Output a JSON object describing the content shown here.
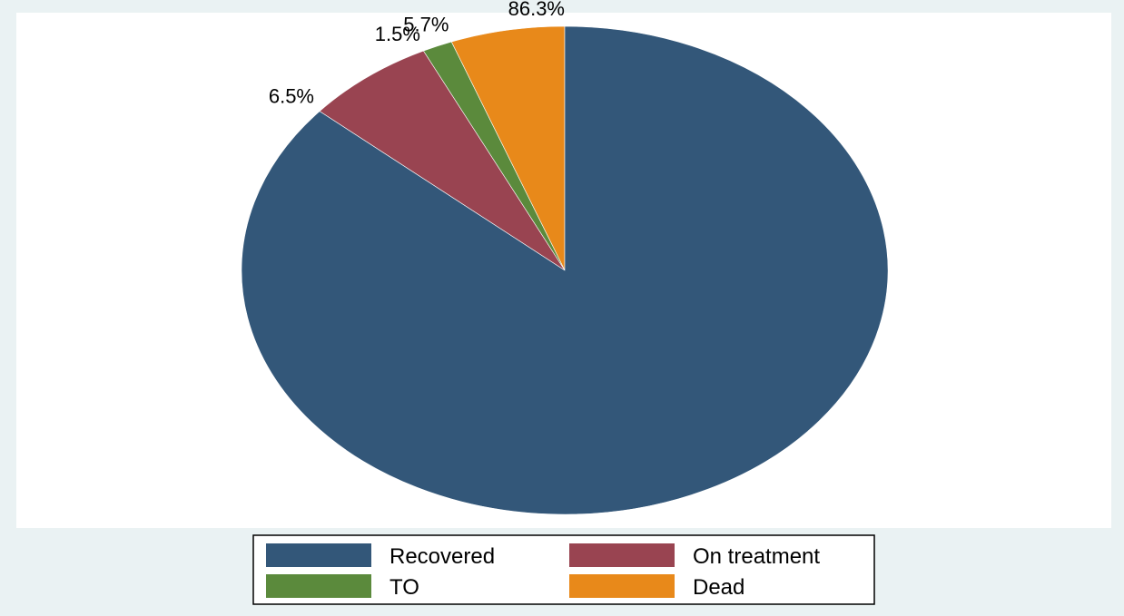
{
  "chart_data": {
    "type": "pie",
    "slices": [
      {
        "label": "Dead",
        "value": 5.7,
        "value_label": "5.7%",
        "color": "#e8891a"
      },
      {
        "label": "TO",
        "value": 1.5,
        "value_label": "1.5%",
        "color": "#5b8a3c"
      },
      {
        "label": "On treatment",
        "value": 6.5,
        "value_label": "6.5%",
        "color": "#994451"
      },
      {
        "label": "Recovered",
        "value": 86.3,
        "value_label": "86.3%",
        "color": "#335779"
      }
    ],
    "start_angle": "12 o'clock",
    "direction": "counter-clockwise",
    "legend": {
      "position": "bottom",
      "columns": 2,
      "order": [
        "Recovered",
        "On treatment",
        "TO",
        "Dead"
      ]
    }
  }
}
